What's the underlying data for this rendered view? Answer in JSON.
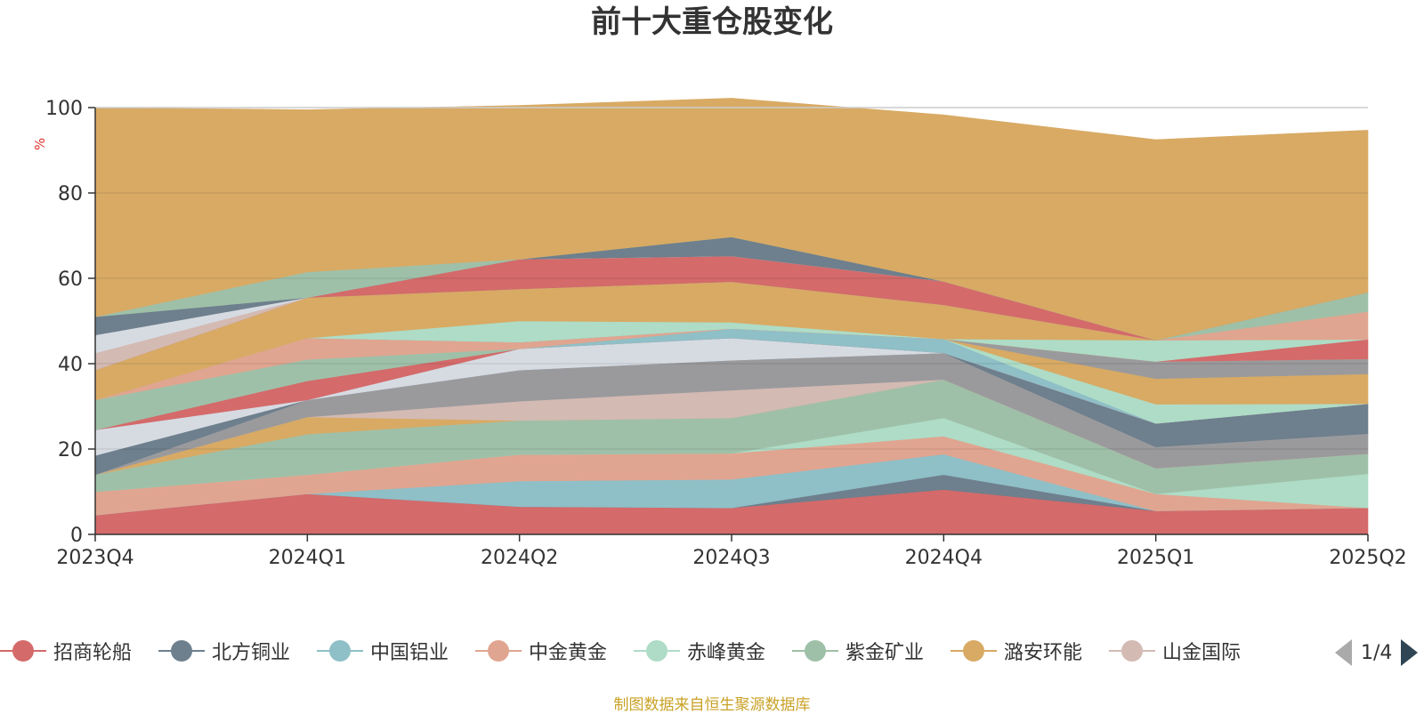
{
  "title": "前十大重仓股变化",
  "source_note": "制图数据来自恒生聚源数据库",
  "pager": {
    "label": "1/4"
  },
  "chart_data": {
    "type": "area",
    "stacked": true,
    "title": "前十大重仓股变化",
    "ylabel": "%",
    "xlabel": "",
    "ylim": [
      0,
      100
    ],
    "yticks": [
      0,
      20,
      40,
      60,
      80,
      100
    ],
    "grid": true,
    "legend_position": "bottom",
    "categories": [
      "2023Q4",
      "2024Q1",
      "2024Q2",
      "2024Q3",
      "2024Q4",
      "2025Q1",
      "2025Q2"
    ],
    "series": [
      {
        "name": "招商轮船",
        "color": "#d46a6a",
        "values": [
          4.5,
          9.5,
          6.5,
          6.2,
          10.5,
          5.5,
          6.2
        ]
      },
      {
        "name": "北方铜业",
        "color": "#6e7f8d",
        "values": [
          0,
          0,
          0,
          0,
          3.5,
          0,
          0
        ]
      },
      {
        "name": "中国铝业",
        "color": "#8fbfc7",
        "values": [
          0,
          0,
          6,
          6.7,
          4.8,
          0,
          0
        ]
      },
      {
        "name": "中金黄金",
        "color": "#e0a590",
        "values": [
          5.5,
          4.5,
          6.2,
          6.1,
          4.2,
          4,
          0
        ]
      },
      {
        "name": "赤峰黄金",
        "color": "#aedcc6",
        "values": [
          0,
          0,
          0,
          0,
          4.3,
          0,
          8
        ]
      },
      {
        "name": "紫金矿业",
        "color": "#9fc0a8",
        "values": [
          4,
          9.5,
          8,
          8.3,
          9,
          6,
          4.7
        ]
      },
      {
        "name": "潞安环能",
        "color": "#d8aa64",
        "values": [
          0,
          4,
          0,
          0,
          0,
          0,
          0
        ]
      },
      {
        "name": "山金国际",
        "color": "#d3bab3",
        "values": [
          0,
          0,
          4.5,
          6.5,
          0,
          0,
          0
        ]
      },
      {
        "name": "",
        "color": "#9a9a9d",
        "values": [
          0,
          4,
          7.3,
          7,
          6.2,
          5,
          4.7
        ]
      },
      {
        "name": "",
        "color": "#6e7f8d",
        "values": [
          4.5,
          0,
          0,
          0,
          0,
          5.5,
          7
        ]
      },
      {
        "name": "",
        "color": "#d6dbe2",
        "values": [
          6,
          0,
          5,
          5.2,
          0,
          0,
          0
        ]
      },
      {
        "name": "",
        "color": "#d46a6a",
        "values": [
          0,
          4.5,
          0,
          0,
          0,
          0,
          0
        ]
      },
      {
        "name": "",
        "color": "#8fbfc7",
        "values": [
          0,
          0,
          0,
          2.2,
          3.3,
          0,
          0
        ]
      },
      {
        "name": "",
        "color": "#aedcc6",
        "values": [
          0,
          0,
          0,
          0,
          0,
          4.5,
          0
        ]
      },
      {
        "name": "",
        "color": "#d8aa64",
        "values": [
          0,
          0,
          0,
          0,
          0,
          6,
          7
        ]
      },
      {
        "name": "",
        "color": "#9a9a9d",
        "values": [
          0,
          0,
          0,
          0,
          0,
          4,
          3.5
        ]
      },
      {
        "name": "",
        "color": "#9fc0a8",
        "values": [
          7,
          5,
          0,
          0,
          0,
          0,
          0
        ]
      },
      {
        "name": "",
        "color": "#e0a590",
        "values": [
          0,
          5,
          1.5,
          0,
          0,
          0,
          0
        ]
      },
      {
        "name": "",
        "color": "#d46a6a",
        "values": [
          0,
          0,
          0,
          0,
          0,
          0,
          4.6
        ]
      },
      {
        "name": "",
        "color": "#aedcc6",
        "values": [
          0,
          0,
          5,
          1.5,
          0,
          5,
          0
        ]
      },
      {
        "name": "",
        "color": "#d8aa64",
        "values": [
          7,
          9.5,
          7.5,
          9.5,
          8,
          0,
          0
        ]
      },
      {
        "name": "",
        "color": "#e0a590",
        "values": [
          0,
          0,
          0,
          0,
          0,
          0,
          6.5
        ]
      },
      {
        "name": "",
        "color": "#9fc0a8",
        "values": [
          0,
          0,
          0,
          0,
          0,
          0,
          4.5
        ]
      },
      {
        "name": "",
        "color": "#d46a6a",
        "values": [
          0,
          0,
          7,
          6,
          5.5,
          0,
          0
        ]
      },
      {
        "name": "",
        "color": "#d3bab3",
        "values": [
          4,
          0,
          0,
          0,
          0,
          0,
          0
        ]
      },
      {
        "name": "",
        "color": "#d6dbe2",
        "values": [
          4.2,
          0,
          0,
          0,
          0,
          0,
          0
        ]
      },
      {
        "name": "",
        "color": "#6e7f8d",
        "values": [
          4.3,
          0,
          0,
          4.5,
          0,
          0,
          0
        ]
      },
      {
        "name": "",
        "color": "#9fc0a8",
        "values": [
          0,
          6,
          0,
          0,
          0,
          0,
          0
        ]
      },
      {
        "name": "",
        "color": "#d8aa64",
        "values": [
          49,
          38,
          36,
          32.5,
          39,
          47,
          38
        ]
      }
    ]
  }
}
